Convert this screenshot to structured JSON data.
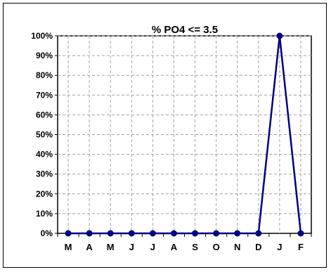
{
  "chart_data": {
    "type": "line",
    "title": "%  PO4 <= 3.5",
    "xlabel": "",
    "ylabel": "",
    "categories": [
      "M",
      "A",
      "M",
      "J",
      "J",
      "A",
      "S",
      "O",
      "N",
      "D",
      "J",
      "F"
    ],
    "y_ticks": [
      "0%",
      "10%",
      "20%",
      "30%",
      "40%",
      "50%",
      "60%",
      "70%",
      "80%",
      "90%",
      "100%"
    ],
    "ylim": [
      0,
      100
    ],
    "grid": true,
    "legend": "none",
    "series": [
      {
        "values": [
          0,
          0,
          0,
          0,
          0,
          0,
          0,
          0,
          0,
          0,
          100,
          0
        ],
        "color": "#000080"
      }
    ]
  }
}
